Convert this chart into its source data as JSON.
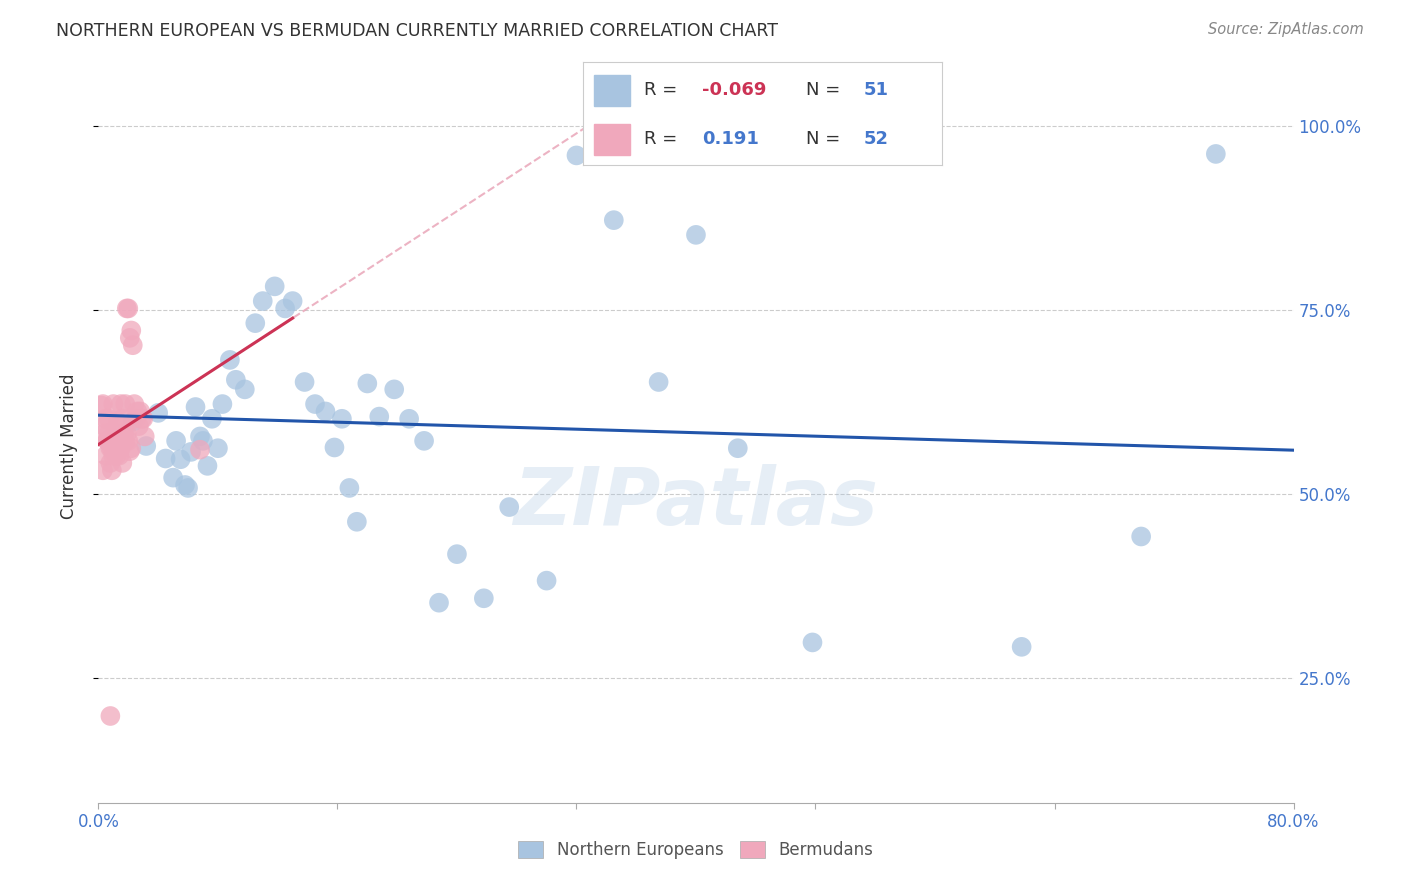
{
  "title": "NORTHERN EUROPEAN VS BERMUDAN CURRENTLY MARRIED CORRELATION CHART",
  "source": "Source: ZipAtlas.com",
  "ylabel": "Currently Married",
  "watermark": "ZIPatlas",
  "xlim": [
    0.0,
    0.8
  ],
  "ylim": [
    0.08,
    1.05
  ],
  "blue_color": "#a8c4e0",
  "pink_color": "#f0a8bc",
  "blue_line_color": "#2255aa",
  "pink_line_color": "#cc3355",
  "dashed_line_color": "#e8a0b4",
  "blue_points_x": [
    0.023,
    0.032,
    0.04,
    0.045,
    0.05,
    0.052,
    0.055,
    0.058,
    0.06,
    0.062,
    0.065,
    0.068,
    0.07,
    0.073,
    0.076,
    0.08,
    0.083,
    0.088,
    0.092,
    0.098,
    0.105,
    0.11,
    0.118,
    0.125,
    0.13,
    0.138,
    0.145,
    0.152,
    0.158,
    0.163,
    0.168,
    0.173,
    0.18,
    0.188,
    0.198,
    0.208,
    0.218,
    0.228,
    0.24,
    0.258,
    0.275,
    0.3,
    0.32,
    0.345,
    0.375,
    0.4,
    0.428,
    0.478,
    0.618,
    0.698,
    0.748
  ],
  "blue_points_y": [
    0.598,
    0.565,
    0.61,
    0.548,
    0.522,
    0.572,
    0.547,
    0.512,
    0.508,
    0.557,
    0.618,
    0.578,
    0.572,
    0.538,
    0.602,
    0.562,
    0.622,
    0.682,
    0.655,
    0.642,
    0.732,
    0.762,
    0.782,
    0.752,
    0.762,
    0.652,
    0.622,
    0.612,
    0.563,
    0.602,
    0.508,
    0.462,
    0.65,
    0.605,
    0.642,
    0.602,
    0.572,
    0.352,
    0.418,
    0.358,
    0.482,
    0.382,
    0.96,
    0.872,
    0.652,
    0.852,
    0.562,
    0.298,
    0.292,
    0.442,
    0.962
  ],
  "pink_points_x": [
    0.002,
    0.003,
    0.004,
    0.005,
    0.006,
    0.007,
    0.008,
    0.009,
    0.01,
    0.011,
    0.012,
    0.013,
    0.014,
    0.015,
    0.016,
    0.017,
    0.018,
    0.019,
    0.02,
    0.021,
    0.022,
    0.003,
    0.004,
    0.005,
    0.006,
    0.007,
    0.008,
    0.009,
    0.01,
    0.011,
    0.012,
    0.013,
    0.014,
    0.015,
    0.016,
    0.017,
    0.018,
    0.019,
    0.02,
    0.021,
    0.022,
    0.023,
    0.024,
    0.025,
    0.026,
    0.027,
    0.028,
    0.029,
    0.03,
    0.031,
    0.068,
    0.008
  ],
  "pink_points_y": [
    0.62,
    0.622,
    0.582,
    0.552,
    0.572,
    0.602,
    0.562,
    0.532,
    0.622,
    0.582,
    0.552,
    0.598,
    0.572,
    0.562,
    0.542,
    0.592,
    0.622,
    0.582,
    0.572,
    0.558,
    0.562,
    0.532,
    0.592,
    0.602,
    0.572,
    0.582,
    0.542,
    0.562,
    0.552,
    0.578,
    0.582,
    0.562,
    0.552,
    0.622,
    0.602,
    0.582,
    0.572,
    0.752,
    0.752,
    0.712,
    0.722,
    0.702,
    0.622,
    0.602,
    0.612,
    0.592,
    0.612,
    0.602,
    0.602,
    0.578,
    0.56,
    0.198
  ],
  "background_color": "#ffffff",
  "grid_color": "#cccccc",
  "yticks": [
    0.25,
    0.5,
    0.75,
    1.0
  ],
  "ytick_labels": [
    "25.0%",
    "50.0%",
    "75.0%",
    "100.0%"
  ],
  "legend_blue_r": "-0.069",
  "legend_blue_n": "51",
  "legend_pink_r": "0.191",
  "legend_pink_n": "52"
}
